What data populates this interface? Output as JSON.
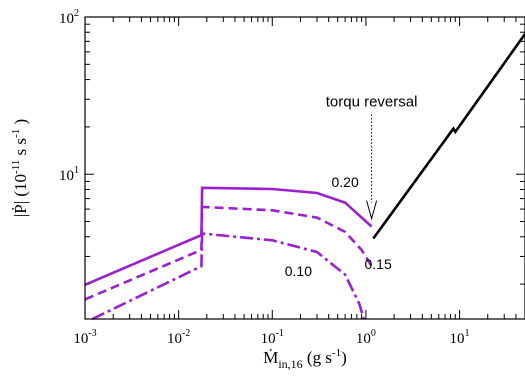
{
  "chart_data": {
    "type": "line",
    "xlabel": "Ṁ_in,16 (g s^-1)",
    "ylabel": "|Ṗ| (10^-11 s s^-1)",
    "xscale": "log",
    "yscale": "log",
    "xlim": [
      0.001,
      50
    ],
    "ylim": [
      1.2,
      100
    ],
    "grid": false,
    "xticks": [
      {
        "base": "10",
        "exp": "-3",
        "value": 0.001
      },
      {
        "base": "10",
        "exp": "-2",
        "value": 0.01
      },
      {
        "base": "10",
        "exp": "-1",
        "value": 0.1
      },
      {
        "base": "10",
        "exp": "0",
        "value": 1
      },
      {
        "base": "10",
        "exp": "1",
        "value": 10
      }
    ],
    "yticks": [
      {
        "base": "10",
        "exp": "1",
        "value": 10
      },
      {
        "base": "10",
        "exp": "2",
        "value": 100
      }
    ],
    "annotations": [
      {
        "text": "torqu reversal",
        "x": 1.15,
        "y": 27
      }
    ],
    "series": [
      {
        "name": "0.20",
        "color": "#9b1fd0",
        "dash": "solid",
        "points": [
          [
            0.001,
            1.98
          ],
          [
            0.0175,
            4.1
          ],
          [
            0.0178,
            8.2
          ],
          [
            0.1,
            8.05
          ],
          [
            0.3,
            7.6
          ],
          [
            0.6,
            6.6
          ],
          [
            0.9,
            5.3
          ],
          [
            1.15,
            4.65
          ]
        ]
      },
      {
        "name": "0.15",
        "color": "#9b1fd0",
        "dash": "dashed",
        "points": [
          [
            0.001,
            1.6
          ],
          [
            0.0175,
            3.3
          ],
          [
            0.0178,
            6.2
          ],
          [
            0.1,
            5.9
          ],
          [
            0.3,
            5.3
          ],
          [
            0.6,
            4.3
          ],
          [
            0.9,
            3.3
          ],
          [
            1.15,
            2.6
          ]
        ]
      },
      {
        "name": "0.10",
        "color": "#9b1fd0",
        "dash": "dashdot",
        "points": [
          [
            0.0012,
            1.2
          ],
          [
            0.0175,
            2.6
          ],
          [
            0.0178,
            4.2
          ],
          [
            0.1,
            3.8
          ],
          [
            0.3,
            3.2
          ],
          [
            0.6,
            2.3
          ],
          [
            0.85,
            1.5
          ],
          [
            0.95,
            1.2
          ]
        ]
      },
      {
        "name": "",
        "color": "#000000",
        "dash": "solid",
        "points": [
          [
            1.2,
            3.9
          ],
          [
            8.6,
            19.5
          ],
          [
            9.0,
            18.6
          ],
          [
            50,
            78
          ]
        ]
      }
    ],
    "curve_labels": [
      {
        "text": "0.20",
        "x": 0.6,
        "y": 8.3
      },
      {
        "text": "0.15",
        "x": 1.35,
        "y": 2.5
      },
      {
        "text": "0.10",
        "x": 0.19,
        "y": 2.25
      }
    ]
  }
}
